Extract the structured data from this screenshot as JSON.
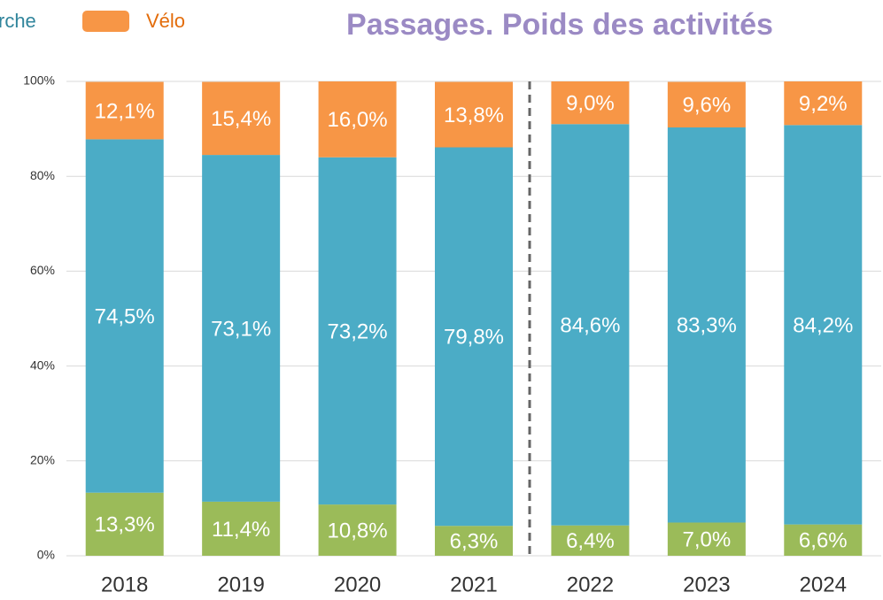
{
  "chart_data": {
    "type": "stacked_bar",
    "title": "Passages. Poids des activités",
    "categories": [
      "2018",
      "2019",
      "2020",
      "2021",
      "2022",
      "2023",
      "2024"
    ],
    "series": [
      {
        "color": "#9bbb59",
        "values": [
          13.3,
          11.4,
          10.8,
          6.3,
          6.4,
          7.0,
          6.6
        ],
        "value_labels": [
          "13,3%",
          "11,4%",
          "10,8%",
          "6,3%",
          "6,4%",
          "7,0%",
          "6,6%"
        ]
      },
      {
        "name": "rche",
        "color": "#4bacc6",
        "values": [
          74.5,
          73.1,
          73.2,
          79.8,
          84.6,
          83.3,
          84.2
        ],
        "value_labels": [
          "74,5%",
          "73,1%",
          "73,2%",
          "79,8%",
          "84,6%",
          "83,3%",
          "84,2%"
        ]
      },
      {
        "name": "Vélo",
        "color": "#f79646",
        "values": [
          12.1,
          15.4,
          16.0,
          13.8,
          9.0,
          9.6,
          9.2
        ],
        "value_labels": [
          "12,1%",
          "15,4%",
          "16,0%",
          "13,8%",
          "9,0%",
          "9,6%",
          "9,2%"
        ]
      }
    ],
    "ylim": [
      0,
      100
    ],
    "yticks": [
      {
        "value": 0,
        "label": "0%"
      },
      {
        "value": 20,
        "label": "20%"
      },
      {
        "value": 40,
        "label": "40%"
      },
      {
        "value": 60,
        "label": "60%"
      },
      {
        "value": 80,
        "label": "80%"
      },
      {
        "value": 100,
        "label": "100%"
      }
    ],
    "grid": true
  }
}
